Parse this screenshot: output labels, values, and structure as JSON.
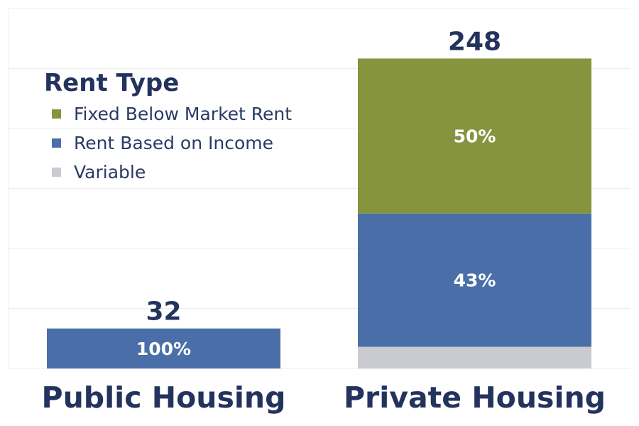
{
  "chart_data": {
    "type": "bar",
    "stacked": true,
    "categories": [
      "Public Housing",
      "Private Housing"
    ],
    "totals": [
      32,
      248
    ],
    "series": [
      {
        "name": "Fixed Below Market Rent",
        "color": "#86933f",
        "percents": [
          0,
          50
        ],
        "labels": [
          "",
          "50%"
        ]
      },
      {
        "name": "Rent Based on Income",
        "color": "#4a6fa8",
        "percents": [
          100,
          43
        ],
        "labels": [
          "100%",
          "43%"
        ]
      },
      {
        "name": "Variable",
        "color": "#c9cbd0",
        "percents": [
          0,
          7
        ],
        "labels": [
          "",
          ""
        ]
      }
    ],
    "legend": {
      "title": "Rent Type",
      "position": "top-left"
    },
    "grid": true,
    "ylim": [
      0,
      288
    ]
  }
}
